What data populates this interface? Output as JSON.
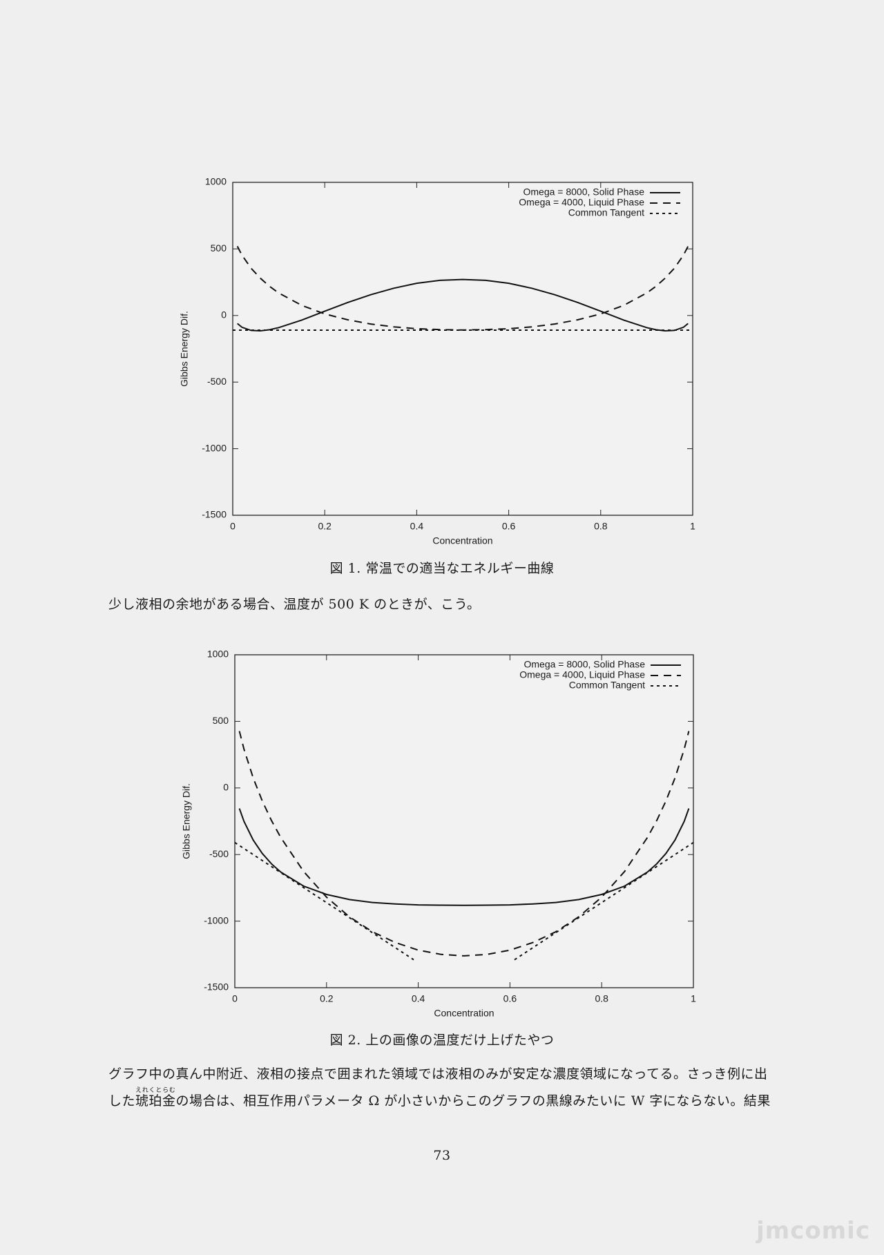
{
  "chart_data": [
    {
      "type": "line",
      "caption": "図 1. 常温での適当なエネルギー曲線",
      "x_label": "Concentration",
      "y_label": "Gibbs Energy Dif.",
      "xlim": [
        0,
        1
      ],
      "xticks": [
        0,
        0.2,
        0.4,
        0.6,
        0.8,
        1
      ],
      "ylim": [
        -1500,
        1000
      ],
      "yticks": [
        -1500,
        -1000,
        -500,
        0,
        500,
        1000
      ],
      "grid": false,
      "legend": "top-right",
      "series": [
        {
          "name": "Omega = 8000, Solid Phase",
          "color": "#111111",
          "line_style": "solid",
          "x": [
            0.01,
            0.02,
            0.04,
            0.06,
            0.08,
            0.1,
            0.15,
            0.2,
            0.25,
            0.3,
            0.35,
            0.4,
            0.45,
            0.5,
            0.55,
            0.6,
            0.65,
            0.7,
            0.75,
            0.8,
            0.85,
            0.9,
            0.92,
            0.94,
            0.96,
            0.98,
            0.99
          ],
          "values": [
            -60,
            -88,
            -112,
            -115,
            -107,
            -91,
            -34,
            32,
            98,
            156,
            205,
            242,
            264,
            271,
            264,
            242,
            205,
            156,
            98,
            32,
            -34,
            -91,
            -107,
            -115,
            -112,
            -88,
            -60
          ]
        },
        {
          "name": "Omega = 4000, Liquid Phase",
          "color": "#111111",
          "line_style": "dashed",
          "x": [
            0.01,
            0.02,
            0.04,
            0.06,
            0.08,
            0.1,
            0.15,
            0.2,
            0.25,
            0.3,
            0.35,
            0.4,
            0.45,
            0.5,
            0.55,
            0.6,
            0.65,
            0.7,
            0.75,
            0.8,
            0.85,
            0.9,
            0.92,
            0.94,
            0.96,
            0.98,
            0.99
          ],
          "values": [
            520,
            454,
            355,
            280,
            219,
            169,
            76,
            12,
            -32,
            -64,
            -85,
            -99,
            -106,
            -109,
            -106,
            -99,
            -85,
            -64,
            -32,
            12,
            76,
            169,
            219,
            280,
            355,
            454,
            520
          ]
        },
        {
          "name": "Common Tangent",
          "color": "#111111",
          "line_style": "dotted",
          "x": [
            0,
            1
          ],
          "values": [
            -110,
            -110
          ]
        }
      ]
    },
    {
      "type": "line",
      "caption": "図 2. 上の画像の温度だけ上げたやつ",
      "x_label": "Concentration",
      "y_label": "Gibbs Energy Dif.",
      "xlim": [
        0,
        1
      ],
      "xticks": [
        0,
        0.2,
        0.4,
        0.6,
        0.8,
        1
      ],
      "ylim": [
        -1500,
        1000
      ],
      "yticks": [
        -1500,
        -1000,
        -500,
        0,
        500,
        1000
      ],
      "grid": false,
      "legend": "top-right",
      "series": [
        {
          "name": "Omega = 8000, Solid Phase",
          "color": "#111111",
          "line_style": "solid",
          "x": [
            0.01,
            0.02,
            0.04,
            0.06,
            0.08,
            0.1,
            0.15,
            0.2,
            0.25,
            0.3,
            0.35,
            0.4,
            0.45,
            0.5,
            0.55,
            0.6,
            0.65,
            0.7,
            0.75,
            0.8,
            0.85,
            0.9,
            0.92,
            0.94,
            0.96,
            0.98,
            0.99
          ],
          "values": [
            -154,
            -251,
            -391,
            -492,
            -570,
            -631,
            -737,
            -800,
            -838,
            -860,
            -871,
            -878,
            -880,
            -881,
            -880,
            -878,
            -871,
            -860,
            -838,
            -800,
            -737,
            -631,
            -570,
            -492,
            -391,
            -251,
            -154
          ]
        },
        {
          "name": "Omega = 4000, Liquid Phase",
          "color": "#111111",
          "line_style": "dashed",
          "x": [
            0.01,
            0.02,
            0.04,
            0.06,
            0.08,
            0.1,
            0.15,
            0.2,
            0.25,
            0.3,
            0.35,
            0.4,
            0.45,
            0.5,
            0.55,
            0.6,
            0.65,
            0.7,
            0.75,
            0.8,
            0.85,
            0.9,
            0.92,
            0.94,
            0.96,
            0.98,
            0.99
          ],
          "values": [
            427,
            291,
            75,
            -98,
            -245,
            -371,
            -627,
            -820,
            -968,
            -1080,
            -1161,
            -1218,
            -1250,
            -1261,
            -1250,
            -1218,
            -1161,
            -1080,
            -968,
            -820,
            -627,
            -371,
            -245,
            -98,
            75,
            291,
            427
          ]
        },
        {
          "name": "Common Tangent",
          "color": "#111111",
          "line_style": "dotted",
          "x": [
            0,
            0.39,
            0.5,
            0.61,
            1
          ],
          "values": [
            -410,
            -1290,
            null,
            -1290,
            -410
          ]
        }
      ]
    }
  ],
  "text": {
    "paragraph_1": "少し液相の余地がある場合、温度が 500 K のときが、こう。",
    "paragraph_2_line_1": "グラフ中の真ん中附近、液相の接点で囲まれた領域では液相のみが安定な濃度領域になってる。さっき例に出",
    "paragraph_2_line_2": {
      "before": "した",
      "ruby_base": "琥珀金",
      "ruby": "えれくとらむ",
      "after": "の場合は、相互作用パラメータ Ω が小さいからこのグラフの黒線みたいに W 字にならない。結果"
    },
    "page_number": "73",
    "watermark": "jmcomic"
  }
}
